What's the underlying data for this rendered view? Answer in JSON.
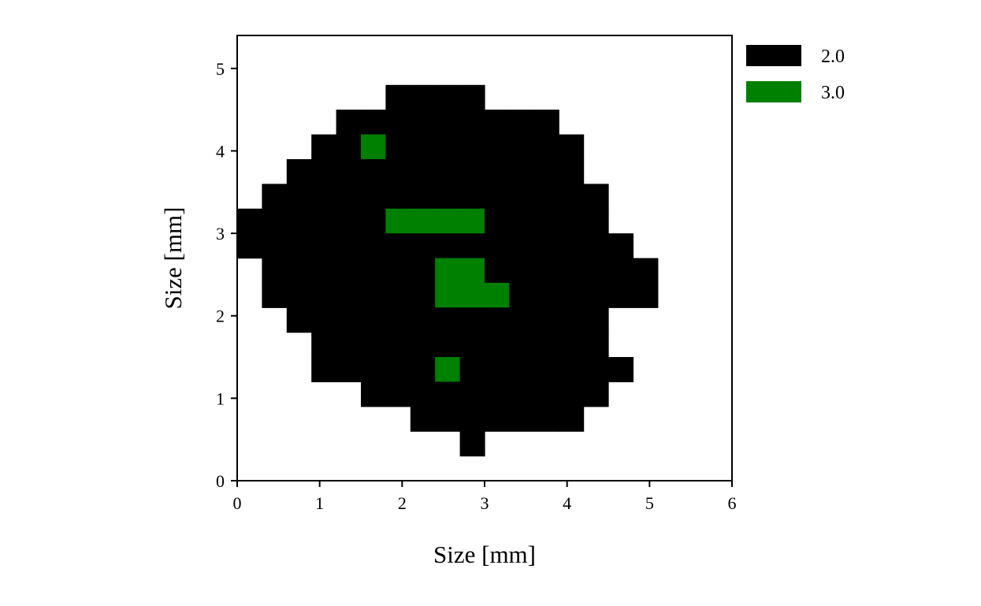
{
  "chart_data": {
    "type": "heatmap",
    "title": "",
    "xlabel": "Size [mm]",
    "ylabel": "Size [mm]",
    "xlim": [
      0,
      6
    ],
    "ylim": [
      0,
      5.4
    ],
    "xticks": [
      0,
      1,
      2,
      3,
      4,
      5,
      6
    ],
    "yticks": [
      0,
      1,
      2,
      3,
      4,
      5
    ],
    "grid": false,
    "legend_position": "outside-top-right",
    "cell_size": [
      0.3,
      0.3
    ],
    "categories": [
      {
        "label": "2.0",
        "value": 2.0,
        "color": "#000000"
      },
      {
        "label": "3.0",
        "value": 3.0,
        "color": "#008000"
      }
    ],
    "grid_origin": [
      0,
      0.3
    ],
    "grid_rows_from_top": [
      "......KKKK..........",
      "....KKKKKKKKK.......",
      "...KKGKKKKKKKK......",
      "..KKKKKKKKKKKK......",
      ".KKKKKKKKKKKKKK.....",
      "KKKKKKGGGGKKKKK.....",
      "KKKKKKKKKKKKKKKK....",
      ".KKKKKKKGGKKKKKKK...",
      ".KKKKKKKGGGKKKKKK...",
      "..KKKKKKKKKKKKK.....",
      "...KKKKKKKKKKKK.....",
      "...KKKKKGKKKKKKK....",
      ".....KKKKKKKKKK.....",
      ".......KKKKKKK......",
      ".........K.........."
    ],
    "grid_legend": {
      ".": "empty",
      "K": "2.0",
      "G": "3.0"
    }
  }
}
